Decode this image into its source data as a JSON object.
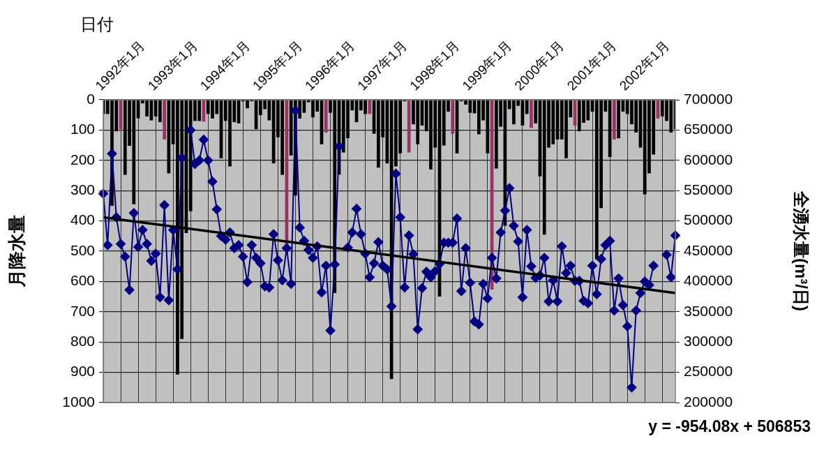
{
  "chart_data": {
    "type": "bar",
    "xlabel": "日付",
    "ylabel": "月降水量",
    "y2label": "全湧水量(m³/日)",
    "categories": [
      null,
      null,
      null,
      null,
      "1992年1月",
      null,
      null,
      null,
      null,
      null,
      null,
      null,
      null,
      null,
      null,
      null,
      "1993年1月",
      null,
      null,
      null,
      null,
      null,
      null,
      null,
      null,
      null,
      null,
      null,
      "1994年1月",
      null,
      null,
      null,
      null,
      null,
      null,
      null,
      null,
      null,
      null,
      null,
      "1995年1月",
      null,
      null,
      null,
      null,
      null,
      null,
      null,
      null,
      null,
      null,
      null,
      "1996年1月",
      null,
      null,
      null,
      null,
      null,
      null,
      null,
      null,
      null,
      null,
      null,
      "1997年1月",
      null,
      null,
      null,
      null,
      null,
      null,
      null,
      null,
      null,
      null,
      null,
      "1998年1月",
      null,
      null,
      null,
      null,
      null,
      null,
      null,
      null,
      null,
      null,
      null,
      "1999年1月",
      null,
      null,
      null,
      null,
      null,
      null,
      null,
      null,
      null,
      null,
      null,
      "2000年1月",
      null,
      null,
      null,
      null,
      null,
      null,
      null,
      null,
      null,
      null,
      null,
      "2001年1月",
      null,
      null,
      null,
      null,
      null,
      null,
      null,
      null,
      null,
      null,
      null,
      "2002年1月",
      null,
      null,
      null,
      null,
      null,
      null,
      null
    ],
    "series": [
      {
        "type": "bar",
        "axis": "y",
        "colors": [
          "#000000",
          "#000000",
          "#000000",
          "#000000",
          "#993366",
          "#000000",
          "#000000",
          "#000000",
          "#000000",
          "#000000",
          "#000000",
          "#000000",
          "#000000",
          "#000000",
          "#993366",
          "#000000",
          "#000000",
          "#000000",
          "#000000",
          "#000000",
          "#000000",
          "#000000",
          "#000000",
          "#993366",
          "#000000",
          "#000000",
          "#000000",
          "#000000",
          "#000000",
          "#000000",
          "#000000",
          "#000000",
          "#000000",
          "#000000",
          "#000000",
          "#000000",
          "#000000",
          "#000000",
          "#000000",
          "#000000",
          "#000000",
          "#000000",
          "#993366",
          "#000000",
          "#000000",
          "#000000",
          "#000000",
          "#000000",
          "#000000",
          "#000000",
          "#000000",
          "#993366",
          "#000000",
          "#000000",
          "#000000",
          "#000000",
          "#000000",
          "#000000",
          "#000000",
          "#000000",
          "#000000",
          "#993366",
          "#000000",
          "#000000",
          "#000000",
          "#000000",
          "#000000",
          "#000000",
          "#000000",
          "#000000",
          "#993366",
          "#000000",
          "#000000",
          "#000000",
          "#000000",
          "#000000",
          "#000000",
          "#000000",
          "#000000",
          "#000000",
          "#993366",
          "#000000",
          "#000000",
          "#000000",
          "#000000",
          "#000000",
          "#000000",
          "#000000",
          "#000000",
          "#993366",
          "#000000",
          "#000000",
          "#000000",
          "#000000",
          "#000000",
          "#000000",
          "#000000",
          "#000000",
          "#993366",
          "#000000",
          "#000000",
          "#000000",
          "#000000",
          "#000000",
          "#000000",
          "#000000",
          "#000000",
          "#000000",
          "#993366",
          "#000000",
          "#000000",
          "#000000",
          "#000000",
          "#000000",
          "#000000",
          "#000000",
          "#000000",
          "#993366",
          "#000000",
          "#000000",
          "#000000",
          "#000000",
          "#000000",
          "#000000",
          "#000000",
          "#000000",
          "#000000",
          "#993366",
          "#000000",
          "#000000",
          "#000000",
          "#000000"
        ],
        "values": [
          47,
          47,
          350,
          104,
          97,
          248,
          152,
          345,
          61,
          12,
          55,
          68,
          55,
          74,
          131,
          243,
          147,
          907,
          790,
          440,
          368,
          70,
          70,
          72,
          47,
          62,
          47,
          193,
          70,
          220,
          74,
          78,
          5,
          28,
          5,
          97,
          51,
          31,
          68,
          210,
          124,
          248,
          477,
          184,
          316,
          62,
          43,
          8,
          58,
          39,
          147,
          108,
          43,
          638,
          247,
          174,
          127,
          35,
          74,
          35,
          47,
          47,
          112,
          224,
          124,
          210,
          922,
          220,
          177,
          5,
          174,
          81,
          147,
          85,
          104,
          230,
          158,
          650,
          151,
          39,
          112,
          177,
          5,
          16,
          43,
          45,
          114,
          68,
          177,
          627,
          227,
          89,
          416,
          31,
          81,
          20,
          85,
          47,
          93,
          78,
          253,
          445,
          158,
          147,
          131,
          131,
          193,
          58,
          85,
          104,
          76,
          68,
          39,
          527,
          358,
          39,
          189,
          131,
          127,
          39,
          47,
          81,
          108,
          158,
          312,
          243,
          181,
          62,
          55,
          70,
          108,
          97
        ]
      },
      {
        "type": "line",
        "axis": "y2",
        "color": "#000080",
        "marker": "diamond",
        "values": [
          545000,
          460000,
          611000,
          506000,
          462000,
          441000,
          386000,
          513000,
          457000,
          485000,
          462000,
          434000,
          446000,
          374000,
          526000,
          369000,
          485000,
          420000,
          604000,
          null,
          650000,
          594000,
          600000,
          634000,
          600000,
          565000,
          519000,
          475000,
          469000,
          481000,
          455000,
          460000,
          441000,
          399000,
          460000,
          439000,
          430000,
          392000,
          390000,
          478000,
          435000,
          402000,
          455000,
          396000,
          682000,
          489000,
          467000,
          452000,
          439000,
          458000,
          382000,
          426000,
          319000,
          428000,
          623000,
          null,
          456000,
          481000,
          520000,
          478000,
          446000,
          407000,
          430000,
          465000,
          426000,
          420000,
          359000,
          578000,
          506000,
          390000,
          476000,
          445000,
          321000,
          389000,
          416000,
          407000,
          417000,
          429000,
          464000,
          464000,
          464000,
          504000,
          384000,
          455000,
          398000,
          334000,
          329000,
          396000,
          372000,
          439000,
          405000,
          481000,
          517000,
          554000,
          492000,
          466000,
          374000,
          485000,
          425000,
          406000,
          410000,
          439000,
          367000,
          402000,
          367000,
          458000,
          414000,
          426000,
          401000,
          401000,
          368000,
          364000,
          426000,
          379000,
          437000,
          460000,
          467000,
          352000,
          405000,
          361000,
          326000,
          225000,
          352000,
          381000,
          400000,
          394000,
          426000,
          null,
          null,
          444000,
          407000,
          476000
        ]
      },
      {
        "type": "line",
        "axis": "y2",
        "color": "#000000",
        "marker": "none",
        "values": [
          506000,
          null,
          null,
          null,
          null,
          null,
          null,
          null,
          null,
          null,
          null,
          null,
          null,
          null,
          null,
          null,
          null,
          null,
          null,
          null,
          null,
          null,
          null,
          null,
          null,
          null,
          null,
          null,
          null,
          null,
          null,
          null,
          null,
          null,
          null,
          null,
          null,
          null,
          null,
          null,
          null,
          null,
          null,
          null,
          null,
          null,
          null,
          null,
          null,
          null,
          null,
          null,
          null,
          null,
          null,
          null,
          null,
          null,
          null,
          null,
          null,
          null,
          null,
          null,
          null,
          null,
          null,
          null,
          null,
          null,
          null,
          null,
          null,
          null,
          null,
          null,
          null,
          null,
          null,
          null,
          null,
          null,
          null,
          null,
          null,
          null,
          null,
          null,
          null,
          null,
          null,
          null,
          null,
          null,
          null,
          null,
          null,
          null,
          null,
          null,
          null,
          null,
          null,
          null,
          null,
          null,
          null,
          null,
          null,
          null,
          null,
          null,
          null,
          null,
          null,
          null,
          null,
          null,
          null,
          null,
          null,
          null,
          null,
          null,
          null,
          null,
          null,
          null,
          null,
          null,
          null,
          381000
        ]
      }
    ],
    "ylim": [
      1000,
      0
    ],
    "yticks": [
      0,
      100,
      200,
      300,
      400,
      500,
      600,
      700,
      800,
      900,
      1000
    ],
    "y2lim": [
      200000,
      700000
    ],
    "y2ticks": [
      200000,
      250000,
      300000,
      350000,
      400000,
      450000,
      500000,
      550000,
      600000,
      650000,
      700000
    ],
    "grid": true,
    "legend": false,
    "annotations": [
      "y = -954.08x + 506853"
    ]
  }
}
